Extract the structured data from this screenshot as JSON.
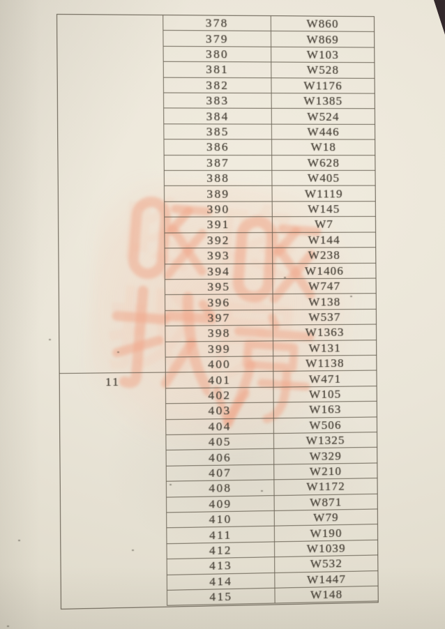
{
  "document": {
    "left_group": {
      "label": "11",
      "starts_at_no": "401"
    },
    "table": {
      "rows": [
        {
          "no": "378",
          "code": "W860"
        },
        {
          "no": "379",
          "code": "W869"
        },
        {
          "no": "380",
          "code": "W103"
        },
        {
          "no": "381",
          "code": "W528"
        },
        {
          "no": "382",
          "code": "W1176"
        },
        {
          "no": "383",
          "code": "W1385"
        },
        {
          "no": "384",
          "code": "W524"
        },
        {
          "no": "385",
          "code": "W446"
        },
        {
          "no": "386",
          "code": "W18"
        },
        {
          "no": "387",
          "code": "W628"
        },
        {
          "no": "388",
          "code": "W405"
        },
        {
          "no": "389",
          "code": "W1119"
        },
        {
          "no": "390",
          "code": "W145"
        },
        {
          "no": "391",
          "code": "W7"
        },
        {
          "no": "392",
          "code": "W144"
        },
        {
          "no": "393",
          "code": "W238"
        },
        {
          "no": "394",
          "code": "W1406"
        },
        {
          "no": "395",
          "code": "W747"
        },
        {
          "no": "396",
          "code": "W138"
        },
        {
          "no": "397",
          "code": "W537"
        },
        {
          "no": "398",
          "code": "W1363"
        },
        {
          "no": "399",
          "code": "W131"
        },
        {
          "no": "400",
          "code": "W1138"
        },
        {
          "no": "401",
          "code": "W471"
        },
        {
          "no": "402",
          "code": "W105"
        },
        {
          "no": "403",
          "code": "W163"
        },
        {
          "no": "404",
          "code": "W506"
        },
        {
          "no": "405",
          "code": "W1325"
        },
        {
          "no": "406",
          "code": "W329"
        },
        {
          "no": "407",
          "code": "W210"
        },
        {
          "no": "408",
          "code": "W1172"
        },
        {
          "no": "409",
          "code": "W871"
        },
        {
          "no": "410",
          "code": "W79"
        },
        {
          "no": "411",
          "code": "W190"
        },
        {
          "no": "412",
          "code": "W1039"
        },
        {
          "no": "413",
          "code": "W532"
        },
        {
          "no": "414",
          "code": "W1447"
        },
        {
          "no": "415",
          "code": "W148"
        }
      ]
    }
  },
  "watermark": {
    "full_text": "咚咚找房",
    "line1": "咚咚",
    "line2": "找房",
    "color": "#f2b09a"
  },
  "colors": {
    "paper": "#eae5d8",
    "table_line": "#58513f",
    "text": "#4c463c",
    "corner_background": "#33282b"
  }
}
